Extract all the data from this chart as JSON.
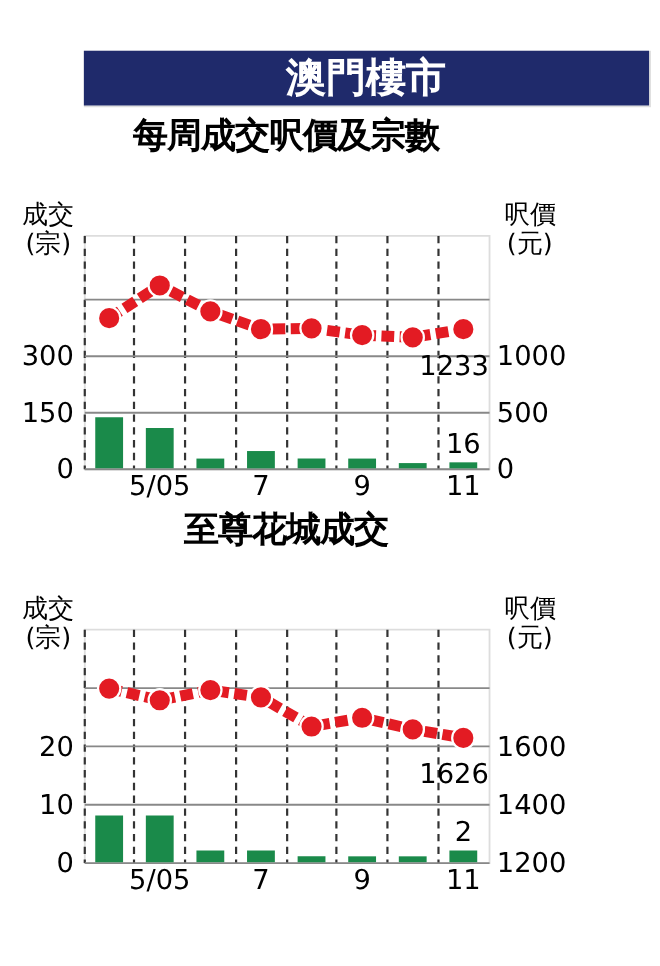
{
  "chart_data": [
    {
      "type": "bar",
      "title": "澳門樓市",
      "subtitle": "每周成交呎價及宗數",
      "ylabel": "成交\n(宗)",
      "y2label": "呎價\n(元)",
      "categories": [
        null,
        "5/05",
        null,
        "7",
        null,
        "9",
        null,
        "11"
      ],
      "ylim": [
        0,
        620
      ],
      "yticks": [
        0,
        150,
        300,
        {
          "value": 450,
          "label": null
        }
      ],
      "y2lim": [
        0,
        2067
      ],
      "y2ticks": [
        0,
        500,
        1000
      ],
      "series": [
        {
          "color": "#1a8a4a",
          "values": [
            136,
            107,
            26,
            46,
            26,
            26,
            14,
            16
          ],
          "value_labels": [
            null,
            null,
            null,
            null,
            null,
            null,
            null,
            "16"
          ]
        },
        {
          "type": "line",
          "axis": "y2",
          "color": "#e31b23",
          "values": [
            1330,
            1620,
            1390,
            1233,
            1240,
            1180,
            1160,
            1233
          ],
          "value_labels": [
            null,
            null,
            null,
            null,
            null,
            null,
            null,
            "1233"
          ]
        }
      ],
      "grid": true,
      "marker": "circle",
      "line_style": "dashed"
    },
    {
      "type": "bar",
      "title": "至尊花城成交",
      "ylabel": "成交\n(宗)",
      "y2label": "呎價\n(元)",
      "categories": [
        null,
        "5/05",
        null,
        "7",
        null,
        "9",
        null,
        "11"
      ],
      "ylim": [
        0,
        40
      ],
      "yticks": [
        0,
        10,
        20,
        {
          "value": 30,
          "label": null
        }
      ],
      "y2lim": [
        1200,
        2000
      ],
      "y2ticks": [
        1200,
        1400,
        1600
      ],
      "series": [
        {
          "color": "#1a8a4a",
          "values": [
            8,
            8,
            2,
            2,
            1,
            1,
            1,
            2
          ],
          "value_labels": [
            null,
            null,
            null,
            null,
            null,
            null,
            null,
            "2"
          ]
        },
        {
          "type": "line",
          "axis": "y2",
          "color": "#e31b23",
          "values": [
            1795,
            1755,
            1790,
            1765,
            1665,
            1695,
            1655,
            1626
          ],
          "value_labels": [
            null,
            null,
            null,
            null,
            null,
            null,
            null,
            "1626"
          ]
        }
      ],
      "grid": true,
      "marker": "circle",
      "line_style": "dashed"
    }
  ]
}
